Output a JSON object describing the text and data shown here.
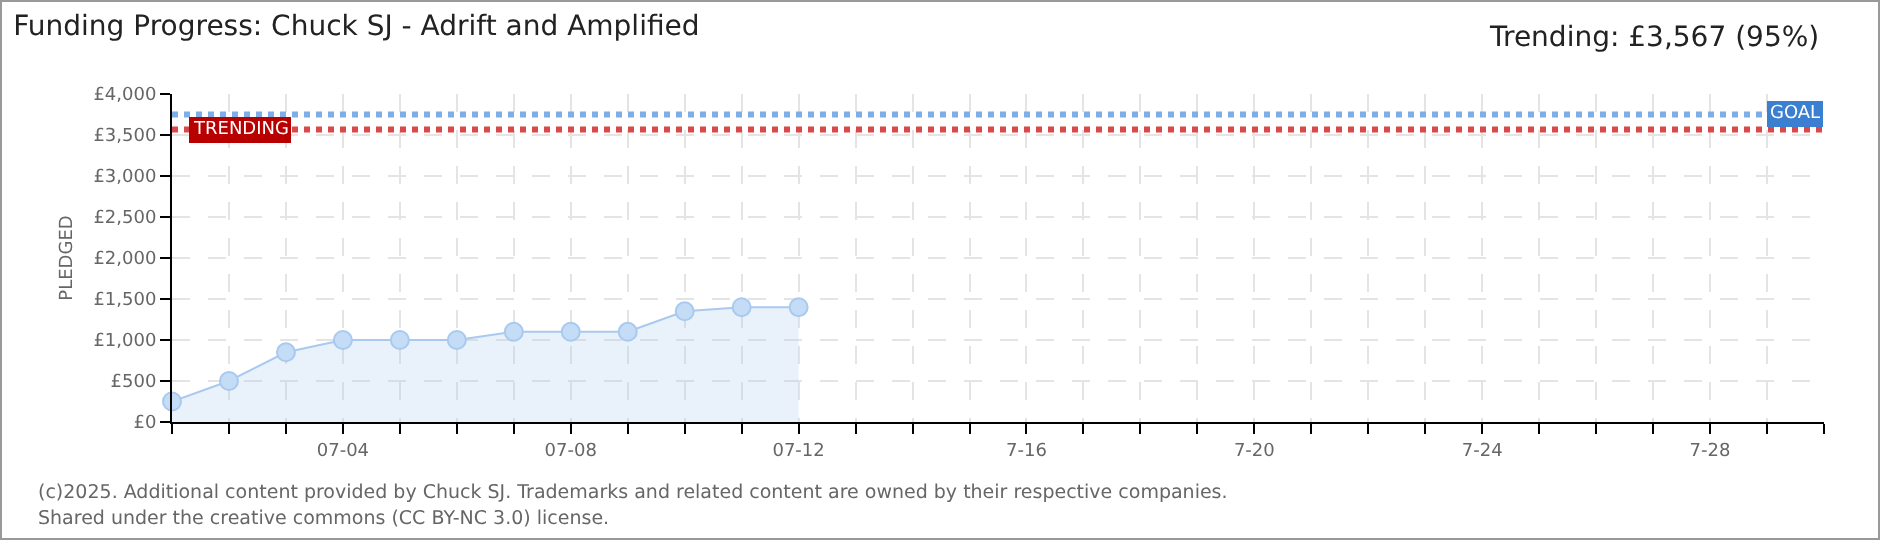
{
  "chart_data": {
    "type": "area",
    "title": "Funding Progress: Chuck SJ - Adrift and Amplified",
    "subtitle": "Trending: £3,567 (95%)",
    "ylabel": "PLEDGED",
    "x": [
      "--07-01",
      "--07-02",
      "--07-03",
      "--07-04",
      "--07-05",
      "--07-06",
      "--07-07",
      "--07-08",
      "--07-09",
      "--07-10",
      "--07-11",
      "--07-12"
    ],
    "series": [
      {
        "color": "#a9c9ef",
        "values": [
          250,
          500,
          850,
          1000,
          1000,
          1000,
          1100,
          1100,
          1100,
          1350,
          1400,
          1400
        ]
      }
    ],
    "xlim": [
      "--07-01",
      "--07-30"
    ],
    "xticks": [
      {
        "value": "--07-01",
        "label": null
      },
      {
        "value": "--07-02",
        "label": null
      },
      {
        "value": "--07-03",
        "label": null
      },
      {
        "value": "--07-04",
        "label": "07-04"
      },
      {
        "value": "--07-05",
        "label": null
      },
      {
        "value": "--07-06",
        "label": null
      },
      {
        "value": "--07-07",
        "label": null
      },
      {
        "value": "--07-08",
        "label": "07-08"
      },
      {
        "value": "--07-09",
        "label": null
      },
      {
        "value": "--07-10",
        "label": null
      },
      {
        "value": "--07-11",
        "label": null
      },
      {
        "value": "--07-12",
        "label": "07-12"
      },
      {
        "value": "--07-13",
        "label": null
      },
      {
        "value": "--07-14",
        "label": null
      },
      {
        "value": "--07-15",
        "label": null
      },
      {
        "value": "--07-16",
        "label": "7-16"
      },
      {
        "value": "--07-17",
        "label": null
      },
      {
        "value": "--07-18",
        "label": null
      },
      {
        "value": "--07-19",
        "label": null
      },
      {
        "value": "--07-20",
        "label": "7-20"
      },
      {
        "value": "--07-21",
        "label": null
      },
      {
        "value": "--07-22",
        "label": null
      },
      {
        "value": "--07-23",
        "label": null
      },
      {
        "value": "--07-24",
        "label": "7-24"
      },
      {
        "value": "--07-25",
        "label": null
      },
      {
        "value": "--07-26",
        "label": null
      },
      {
        "value": "--07-27",
        "label": null
      },
      {
        "value": "--07-28",
        "label": "7-28"
      },
      {
        "value": "--07-29",
        "label": null
      },
      {
        "value": "--07-30",
        "label": null
      }
    ],
    "ylim": [
      0,
      4000
    ],
    "yticks": [
      {
        "value": 0,
        "label": "£0"
      },
      {
        "value": 500,
        "label": "£500"
      },
      {
        "value": 1000,
        "label": "£1,000"
      },
      {
        "value": 1500,
        "label": "£1,500"
      },
      {
        "value": 2000,
        "label": "£2,000"
      },
      {
        "value": 2500,
        "label": "£2,500"
      },
      {
        "value": 3000,
        "label": "£3,000"
      },
      {
        "value": 3500,
        "label": "£3,500"
      },
      {
        "value": 4000,
        "label": "£4,000"
      }
    ],
    "ref_lines": [
      {
        "axis": "y",
        "value": 3750,
        "label": "GOAL",
        "color": "#7eaee6",
        "line_style": "dotted"
      },
      {
        "axis": "y",
        "value": 3567,
        "label": "TRENDING",
        "color": "#d9484a",
        "line_style": "dotted"
      }
    ],
    "annotations": [
      "(c)2025. Additional content provided by Chuck SJ. Trademarks and related content are owned by their respective companies.",
      "Shared under the creative commons (CC BY-NC 3.0) license."
    ],
    "grid": true,
    "marker": "circle",
    "line_style": "solid"
  }
}
